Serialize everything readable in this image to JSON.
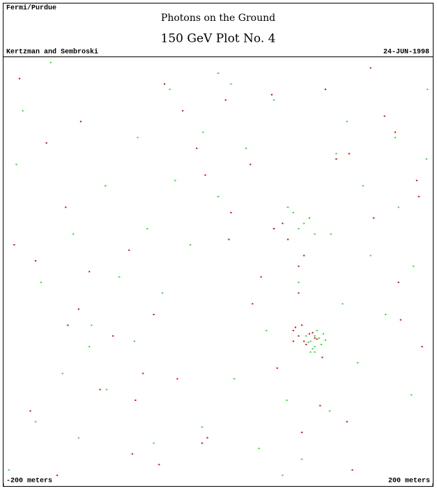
{
  "chart_data": {
    "type": "scatter",
    "logo": "Fermi/Purdue",
    "title": "Photons on the Ground",
    "subtitle": "150 GeV Plot No. 4",
    "authors": "Kertzman and Sembroski",
    "date": "24-JUN-1998",
    "xlim": [
      -200,
      200
    ],
    "ylim": [
      -200,
      200
    ],
    "xticks": [
      {
        "value": -200,
        "label": "-200 meters"
      },
      {
        "value": 200,
        "label": "200 meters"
      }
    ],
    "series": [
      {
        "color": "#e00000",
        "x": [
          -185,
          -160,
          -142,
          -120,
          -98,
          -77,
          -55,
          -33,
          -12,
          10,
          32,
          55,
          78,
          100,
          122,
          145,
          168,
          190,
          -175,
          -150,
          -128,
          -105,
          -83,
          -60,
          -38,
          -15,
          7,
          30,
          52,
          75,
          97,
          120,
          142,
          165,
          187,
          -170,
          -140,
          -110,
          -80,
          -50,
          -20,
          12,
          40,
          70,
          95,
          125,
          155,
          185,
          -190,
          -130,
          -70,
          -10,
          50,
          110,
          170,
          70,
          75,
          80,
          85,
          90,
          78,
          82,
          88,
          72,
          92,
          60,
          65,
          80,
          85,
          75
        ],
        "values": [
          180,
          120,
          60,
          0,
          -60,
          -120,
          -180,
          150,
          90,
          30,
          -30,
          -90,
          -150,
          170,
          110,
          50,
          -10,
          -70,
          -130,
          -190,
          140,
          80,
          20,
          -40,
          -100,
          -160,
          160,
          100,
          40,
          -20,
          -80,
          -140,
          190,
          130,
          70,
          10,
          -50,
          -110,
          -170,
          175,
          115,
          55,
          -5,
          -65,
          -125,
          -185,
          145,
          85,
          25,
          -35,
          -95,
          -155,
          165,
          105,
          -45,
          -55,
          -60,
          -65,
          -58,
          -62,
          -50,
          -68,
          -57,
          -52,
          -63,
          45,
          30,
          15,
          50,
          5
        ]
      },
      {
        "color": "#22e022",
        "x": [
          -195,
          -170,
          -145,
          -118,
          -92,
          -66,
          -40,
          -14,
          12,
          38,
          64,
          90,
          116,
          142,
          168,
          194,
          -182,
          -156,
          -130,
          -104,
          -78,
          -52,
          -26,
          0,
          26,
          52,
          78,
          104,
          130,
          156,
          182,
          -165,
          -135,
          -105,
          -75,
          -45,
          -15,
          15,
          45,
          75,
          105,
          135,
          165,
          195,
          -188,
          -120,
          -60,
          0,
          60,
          120,
          180,
          82,
          86,
          90,
          94,
          98,
          84,
          88,
          92,
          96,
          100,
          86,
          90,
          75,
          80,
          85,
          90,
          70,
          65,
          110
        ],
        "values": [
          -185,
          -140,
          -95,
          -50,
          -5,
          40,
          85,
          130,
          175,
          -165,
          -120,
          -75,
          -30,
          15,
          60,
          105,
          150,
          195,
          -155,
          -110,
          -65,
          -20,
          25,
          70,
          115,
          160,
          -175,
          -130,
          -85,
          -40,
          5,
          -10,
          35,
          80,
          125,
          170,
          -145,
          -100,
          -55,
          -10,
          35,
          80,
          125,
          170,
          100,
          -70,
          -160,
          185,
          -190,
          140,
          -115,
          -60,
          -65,
          -70,
          -62,
          -58,
          -66,
          -72,
          -55,
          -68,
          -64,
          -75,
          -60,
          40,
          45,
          50,
          35,
          55,
          60,
          110
        ]
      }
    ]
  }
}
